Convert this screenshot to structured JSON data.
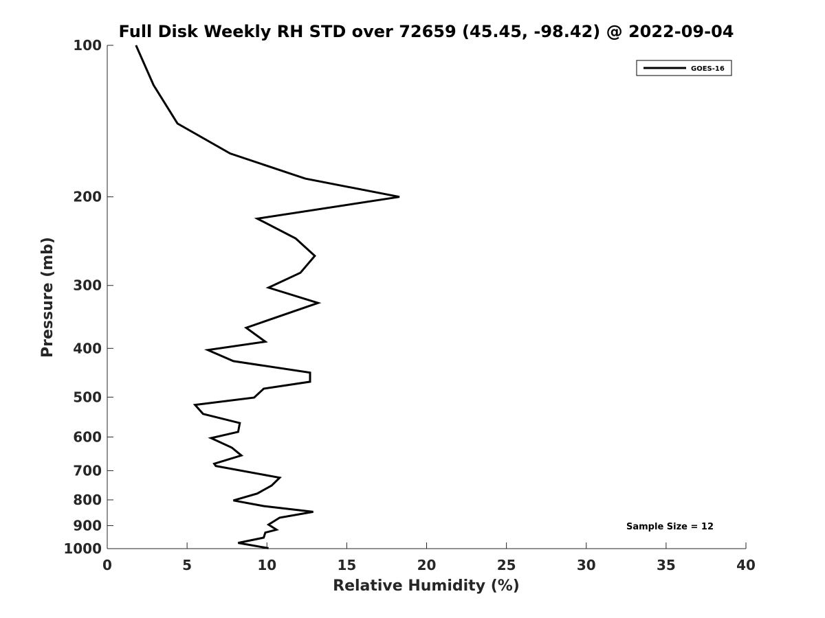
{
  "chart_data": {
    "type": "line",
    "title": "Full Disk Weekly RH STD over 72659 (45.45, -98.42) @ 2022-09-04",
    "xlabel": "Relative Humidity (%)",
    "ylabel": "Pressure (mb)",
    "xlim": [
      0,
      40
    ],
    "ylim": [
      100,
      1000
    ],
    "y_scale": "log",
    "y_reversed": true,
    "xticks": [
      0,
      5,
      10,
      15,
      20,
      25,
      30,
      35,
      40
    ],
    "yticks": [
      100,
      200,
      300,
      400,
      500,
      600,
      700,
      800,
      900,
      1000
    ],
    "grid": false,
    "legend_position": "top-right",
    "annotation": "Sample Size = 12",
    "series": [
      {
        "name": "GOES-16",
        "color": "#000000",
        "x": [
          1.8,
          2.9,
          4.4,
          7.7,
          12.4,
          18.3,
          9.4,
          11.8,
          13.0,
          12.1,
          10.1,
          13.2,
          8.7,
          9.9,
          6.3,
          7.9,
          12.7,
          12.7,
          9.8,
          9.2,
          5.5,
          6.0,
          8.3,
          8.2,
          6.5,
          7.8,
          8.4,
          6.7,
          6.8,
          10.8,
          10.3,
          9.4,
          7.9,
          9.8,
          12.9,
          10.8,
          10.1,
          10.6,
          9.9,
          9.8,
          8.2,
          10.1
        ],
        "y": [
          100,
          120,
          143,
          164,
          184,
          200,
          221,
          242,
          262,
          283,
          303,
          325,
          364,
          388,
          403,
          424,
          447,
          466,
          481,
          501,
          518,
          540,
          563,
          586,
          603,
          630,
          653,
          678,
          685,
          723,
          749,
          777,
          802,
          823,
          845,
          868,
          896,
          917,
          929,
          951,
          974,
          998
        ]
      }
    ]
  }
}
